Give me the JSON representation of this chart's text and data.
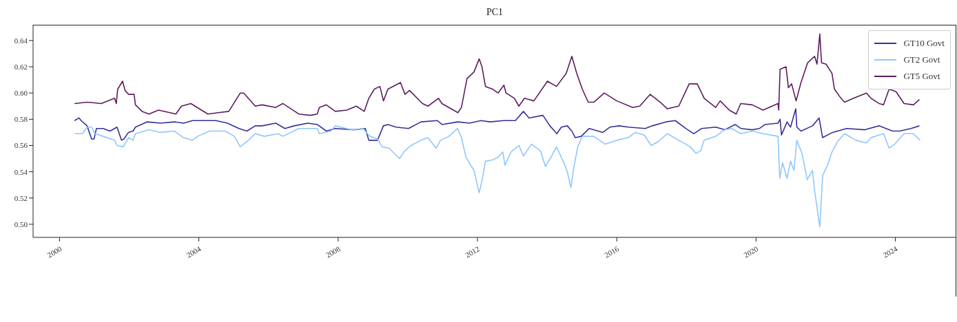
{
  "chart_data": {
    "type": "line",
    "title": "PC1",
    "xlim": [
      1999.24,
      2025.75
    ],
    "xticks": [
      2000,
      2004,
      2008,
      2012,
      2016,
      2020,
      2024
    ],
    "ylim": [
      0.49,
      0.652
    ],
    "yticks": [
      {
        "value": 0.5,
        "label": "0.50"
      },
      0.52,
      0.54,
      0.56,
      0.58,
      {
        "value": 0.6,
        "label": "0.60"
      },
      0.62,
      0.64
    ],
    "legend": "top right",
    "marker": "none",
    "line_style": "solid",
    "series": [
      {
        "name": "GT10 Govt",
        "color": "#34309a",
        "x": [
          2000.43,
          2000.56,
          2000.62,
          2000.79,
          2000.92,
          2000.99,
          2001.06,
          2001.25,
          2001.45,
          2001.65,
          2001.78,
          2001.85,
          2001.98,
          2002.11,
          2002.18,
          2002.51,
          2002.9,
          2003.3,
          2003.56,
          2003.82,
          2004.49,
          2004.82,
          2005.15,
          2005.38,
          2005.62,
          2005.82,
          2006.21,
          2006.47,
          2006.74,
          2007.13,
          2007.4,
          2007.66,
          2007.92,
          2008.45,
          2008.78,
          2008.88,
          2009.04,
          2009.13,
          2009.3,
          2009.43,
          2009.66,
          2010.02,
          2010.38,
          2010.85,
          2010.98,
          2011.44,
          2011.77,
          2012.1,
          2012.36,
          2012.76,
          2013.09,
          2013.32,
          2013.48,
          2013.88,
          2014.08,
          2014.28,
          2014.41,
          2014.58,
          2014.71,
          2014.81,
          2014.98,
          2015.21,
          2015.6,
          2015.8,
          2016.07,
          2016.33,
          2016.82,
          2017.02,
          2017.41,
          2017.68,
          2017.98,
          2018.21,
          2018.44,
          2018.84,
          2019.1,
          2019.4,
          2019.56,
          2019.89,
          2020.1,
          2020.26,
          2020.63,
          2020.69,
          2020.73,
          2020.89,
          2020.99,
          2021.14,
          2021.17,
          2021.29,
          2021.62,
          2021.81,
          2021.91,
          2022.2,
          2022.6,
          2023.13,
          2023.53,
          2023.92,
          2024.12,
          2024.45,
          2024.69
        ],
        "values": [
          0.579,
          0.581,
          0.579,
          0.575,
          0.565,
          0.565,
          0.573,
          0.573,
          0.571,
          0.574,
          0.564,
          0.565,
          0.57,
          0.571,
          0.574,
          0.578,
          0.577,
          0.578,
          0.577,
          0.579,
          0.579,
          0.577,
          0.573,
          0.571,
          0.575,
          0.575,
          0.577,
          0.573,
          0.575,
          0.577,
          0.576,
          0.571,
          0.573,
          0.572,
          0.573,
          0.564,
          0.564,
          0.564,
          0.575,
          0.576,
          0.574,
          0.573,
          0.578,
          0.579,
          0.576,
          0.578,
          0.577,
          0.579,
          0.578,
          0.579,
          0.579,
          0.586,
          0.581,
          0.583,
          0.575,
          0.569,
          0.574,
          0.575,
          0.571,
          0.566,
          0.567,
          0.573,
          0.57,
          0.574,
          0.575,
          0.574,
          0.573,
          0.575,
          0.578,
          0.579,
          0.573,
          0.569,
          0.573,
          0.574,
          0.572,
          0.576,
          0.573,
          0.572,
          0.573,
          0.576,
          0.577,
          0.58,
          0.568,
          0.578,
          0.574,
          0.588,
          0.574,
          0.571,
          0.575,
          0.581,
          0.566,
          0.57,
          0.573,
          0.572,
          0.575,
          0.571,
          0.571,
          0.573,
          0.575
        ]
      },
      {
        "name": "GT2 Govt",
        "color": "#8ec6ff",
        "x": [
          2000.43,
          2000.66,
          2000.79,
          2000.92,
          2001.02,
          2001.25,
          2001.58,
          2001.65,
          2001.83,
          2001.98,
          2002.11,
          2002.18,
          2002.57,
          2002.9,
          2003.3,
          2003.56,
          2003.82,
          2003.97,
          2004.3,
          2004.76,
          2005.02,
          2005.19,
          2005.42,
          2005.62,
          2005.88,
          2006.28,
          2006.41,
          2006.87,
          2007.4,
          2007.46,
          2007.79,
          2007.92,
          2008.39,
          2008.71,
          2008.91,
          2009.13,
          2009.26,
          2009.46,
          2009.76,
          2009.92,
          2010.09,
          2010.38,
          2010.58,
          2010.81,
          2010.94,
          2011.18,
          2011.43,
          2011.54,
          2011.67,
          2011.9,
          2012.05,
          2012.13,
          2012.23,
          2012.43,
          2012.59,
          2012.73,
          2012.79,
          2012.96,
          2013.19,
          2013.32,
          2013.55,
          2013.81,
          2013.95,
          2014.11,
          2014.27,
          2014.48,
          2014.58,
          2014.68,
          2014.78,
          2014.88,
          2015.01,
          2015.34,
          2015.67,
          2016.0,
          2016.33,
          2016.53,
          2016.79,
          2016.99,
          2017.19,
          2017.45,
          2017.78,
          2018.11,
          2018.28,
          2018.41,
          2018.51,
          2018.84,
          2019.1,
          2019.3,
          2019.56,
          2019.89,
          2020.2,
          2020.63,
          2020.68,
          2020.76,
          2020.89,
          2020.99,
          2021.09,
          2021.17,
          2021.32,
          2021.47,
          2021.62,
          2021.68,
          2021.83,
          2021.91,
          2022.05,
          2022.18,
          2022.34,
          2022.54,
          2022.87,
          2023.17,
          2023.3,
          2023.66,
          2023.82,
          2023.98,
          2024.25,
          2024.52,
          2024.71
        ],
        "values": [
          0.569,
          0.569,
          0.574,
          0.574,
          0.569,
          0.567,
          0.564,
          0.56,
          0.559,
          0.566,
          0.564,
          0.569,
          0.572,
          0.57,
          0.571,
          0.566,
          0.564,
          0.567,
          0.571,
          0.571,
          0.567,
          0.559,
          0.564,
          0.569,
          0.567,
          0.569,
          0.567,
          0.573,
          0.573,
          0.569,
          0.571,
          0.575,
          0.572,
          0.573,
          0.567,
          0.565,
          0.559,
          0.558,
          0.55,
          0.556,
          0.56,
          0.564,
          0.566,
          0.558,
          0.564,
          0.567,
          0.573,
          0.566,
          0.551,
          0.541,
          0.524,
          0.533,
          0.548,
          0.549,
          0.551,
          0.555,
          0.545,
          0.555,
          0.56,
          0.552,
          0.561,
          0.556,
          0.544,
          0.551,
          0.559,
          0.547,
          0.54,
          0.528,
          0.545,
          0.559,
          0.567,
          0.567,
          0.561,
          0.564,
          0.566,
          0.57,
          0.568,
          0.56,
          0.563,
          0.569,
          0.564,
          0.559,
          0.554,
          0.556,
          0.564,
          0.567,
          0.572,
          0.573,
          0.569,
          0.571,
          0.569,
          0.567,
          0.535,
          0.547,
          0.535,
          0.548,
          0.541,
          0.564,
          0.554,
          0.534,
          0.541,
          0.526,
          0.498,
          0.537,
          0.545,
          0.555,
          0.563,
          0.569,
          0.564,
          0.562,
          0.566,
          0.569,
          0.558,
          0.561,
          0.569,
          0.569,
          0.564
        ]
      },
      {
        "name": "GT5 Govt",
        "color": "#5c1a5e",
        "x": [
          2000.43,
          2000.8,
          2001.2,
          2001.58,
          2001.63,
          2001.67,
          2001.81,
          2001.88,
          2001.98,
          2002.14,
          2002.18,
          2002.37,
          2002.57,
          2002.84,
          2003.17,
          2003.34,
          2003.5,
          2003.77,
          2004.26,
          2004.56,
          2004.86,
          2005.19,
          2005.29,
          2005.62,
          2005.82,
          2006.21,
          2006.41,
          2006.87,
          2007.2,
          2007.4,
          2007.46,
          2007.66,
          2007.92,
          2008.25,
          2008.52,
          2008.75,
          2008.88,
          2009.04,
          2009.2,
          2009.3,
          2009.43,
          2009.79,
          2009.92,
          2010.05,
          2010.42,
          2010.58,
          2010.88,
          2010.98,
          2011.44,
          2011.54,
          2011.7,
          2011.9,
          2012.05,
          2012.13,
          2012.23,
          2012.43,
          2012.59,
          2012.76,
          2012.82,
          2013.06,
          2013.19,
          2013.35,
          2013.62,
          2014.01,
          2014.27,
          2014.55,
          2014.71,
          2014.85,
          2015.01,
          2015.18,
          2015.34,
          2015.64,
          2016.0,
          2016.46,
          2016.66,
          2016.96,
          2017.25,
          2017.45,
          2017.78,
          2018.08,
          2018.31,
          2018.51,
          2018.84,
          2018.97,
          2019.23,
          2019.43,
          2019.56,
          2019.89,
          2020.2,
          2020.63,
          2020.65,
          2020.69,
          2020.86,
          2020.93,
          2021.02,
          2021.15,
          2021.29,
          2021.48,
          2021.68,
          2021.75,
          2021.83,
          2021.88,
          2022.01,
          2022.18,
          2022.25,
          2022.41,
          2022.54,
          2022.8,
          2023.17,
          2023.3,
          2023.53,
          2023.66,
          2023.82,
          2024.02,
          2024.25,
          2024.52,
          2024.69
        ],
        "values": [
          0.592,
          0.593,
          0.592,
          0.596,
          0.592,
          0.603,
          0.609,
          0.602,
          0.599,
          0.599,
          0.591,
          0.586,
          0.584,
          0.587,
          0.585,
          0.584,
          0.59,
          0.592,
          0.584,
          0.585,
          0.586,
          0.6,
          0.6,
          0.59,
          0.591,
          0.589,
          0.592,
          0.584,
          0.583,
          0.584,
          0.589,
          0.591,
          0.586,
          0.587,
          0.59,
          0.586,
          0.596,
          0.603,
          0.605,
          0.594,
          0.603,
          0.608,
          0.599,
          0.602,
          0.592,
          0.59,
          0.596,
          0.592,
          0.585,
          0.589,
          0.611,
          0.616,
          0.626,
          0.62,
          0.605,
          0.603,
          0.6,
          0.606,
          0.6,
          0.596,
          0.59,
          0.596,
          0.594,
          0.609,
          0.605,
          0.615,
          0.628,
          0.615,
          0.603,
          0.593,
          0.593,
          0.6,
          0.594,
          0.589,
          0.59,
          0.599,
          0.593,
          0.588,
          0.59,
          0.607,
          0.607,
          0.596,
          0.589,
          0.594,
          0.587,
          0.584,
          0.592,
          0.591,
          0.587,
          0.592,
          0.587,
          0.618,
          0.62,
          0.604,
          0.607,
          0.594,
          0.608,
          0.623,
          0.628,
          0.622,
          0.645,
          0.623,
          0.622,
          0.615,
          0.603,
          0.597,
          0.593,
          0.596,
          0.6,
          0.596,
          0.592,
          0.591,
          0.603,
          0.601,
          0.592,
          0.591,
          0.595
        ]
      }
    ]
  }
}
